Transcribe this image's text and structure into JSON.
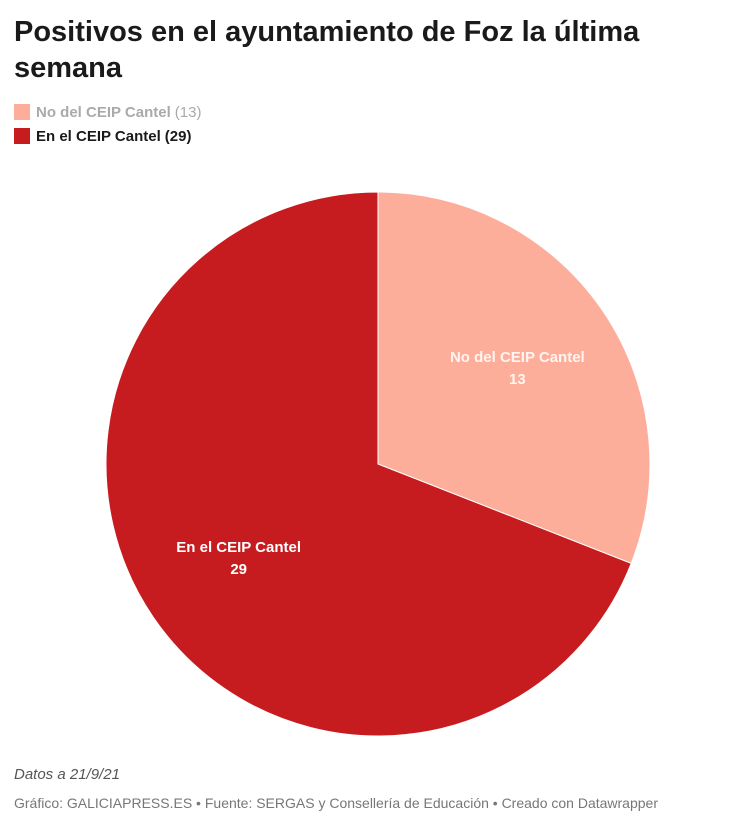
{
  "chart_data": {
    "type": "pie",
    "title": "Positivos en el ayuntamiento de Foz la última semana",
    "categories": [
      "No del CEIP Cantel",
      "En el CEIP Cantel"
    ],
    "values": [
      13,
      29
    ],
    "value_labels": [
      "(13)",
      "(29)"
    ],
    "colors": [
      "#fdae9b",
      "#c71c1f"
    ],
    "note": "Datos a 21/9/21",
    "source": "Gráfico: GALICIAPRESS.ES • Fuente: SERGAS y Consellería de Educación • Creado con Datawrapper"
  }
}
